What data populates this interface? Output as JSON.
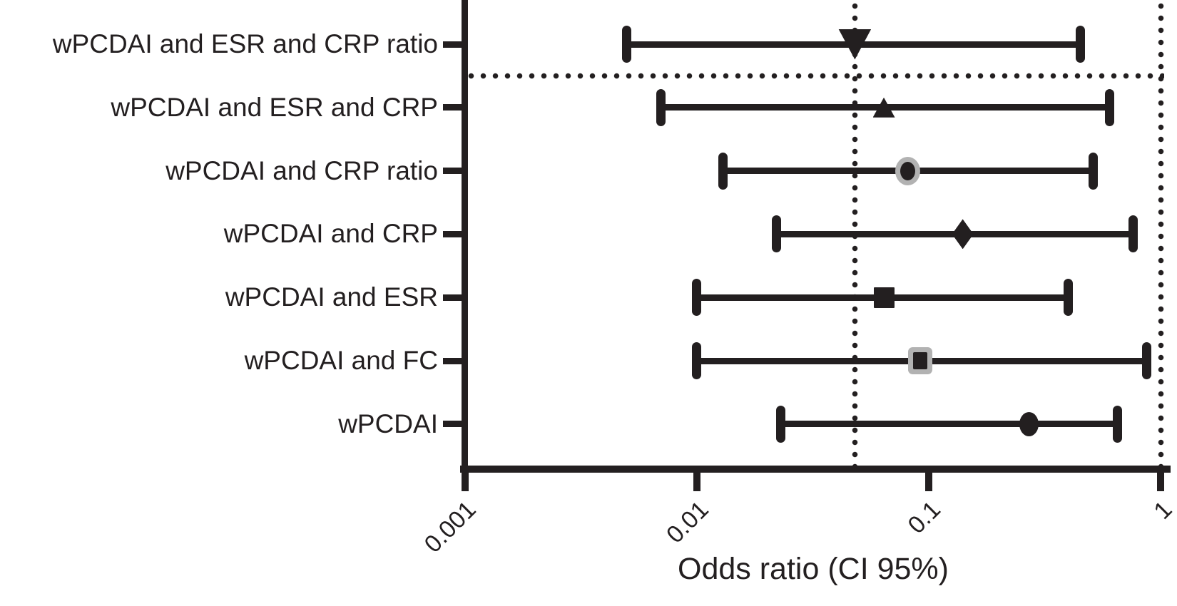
{
  "chart_data": {
    "type": "scatter",
    "variant": "forest-plot",
    "x_axis": {
      "label": "Odds ratio (CI 95%)",
      "scale": "log10",
      "min": 0.001,
      "max": 1,
      "ticks": [
        0.001,
        0.01,
        0.1,
        1
      ],
      "tick_labels": [
        "0.001",
        "0.01",
        "0.1",
        "1"
      ],
      "tick_label_rotation_deg": -45
    },
    "rows": [
      {
        "label": "wPCDAI and ESR and CRP ratio",
        "or": 0.048,
        "ci_low": 0.005,
        "ci_high": 0.45,
        "marker": "triangle-down-large"
      },
      {
        "label": "wPCDAI and ESR and CRP",
        "or": 0.064,
        "ci_low": 0.007,
        "ci_high": 0.6,
        "marker": "triangle-up"
      },
      {
        "label": "wPCDAI and CRP ratio",
        "or": 0.081,
        "ci_low": 0.013,
        "ci_high": 0.51,
        "marker": "circle-gray-ring"
      },
      {
        "label": "wPCDAI and CRP",
        "or": 0.14,
        "ci_low": 0.022,
        "ci_high": 0.76,
        "marker": "diamond"
      },
      {
        "label": "wPCDAI and ESR",
        "or": 0.064,
        "ci_low": 0.01,
        "ci_high": 0.4,
        "marker": "square"
      },
      {
        "label": "wPCDAI and FC",
        "or": 0.092,
        "ci_low": 0.01,
        "ci_high": 0.87,
        "marker": "square-gray-ring"
      },
      {
        "label": "wPCDAI",
        "or": 0.27,
        "ci_low": 0.023,
        "ci_high": 0.65,
        "marker": "circle"
      }
    ],
    "reference_lines": {
      "vertical_dotted_or": [
        0.048,
        1
      ],
      "horizontal_dotted_separator_below_row_index": 0
    },
    "legend": "none",
    "grid": "off",
    "colors": {
      "marker": "#231f20",
      "marker_halo": "#b2b2b2",
      "axis": "#231f20"
    }
  }
}
